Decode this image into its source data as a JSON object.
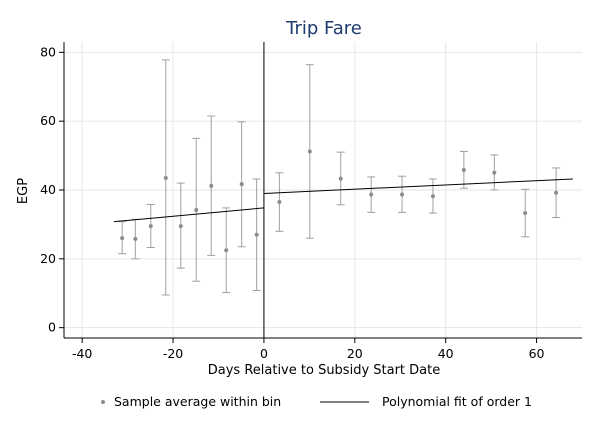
{
  "chart_data": {
    "type": "scatter",
    "title": "Trip Fare",
    "xlabel": "Days Relative to Subsidy Start Date",
    "ylabel": "EGP",
    "xlim": [
      -44,
      70
    ],
    "ylim": [
      -3,
      83
    ],
    "xticks": [
      -40,
      -20,
      0,
      20,
      40,
      60
    ],
    "yticks": [
      0,
      20,
      40,
      60,
      80
    ],
    "grid": true,
    "cutoff": 0,
    "colors": {
      "title": "#1e3a6e",
      "points": "#8c8c8c",
      "error_bars": "#a0a0a0",
      "fit_line": "#000000",
      "grid": "#e6e6e6",
      "cutoff_line": "#000000"
    },
    "series": [
      {
        "name": "Sample average within bin",
        "kind": "points_with_ci",
        "points": [
          {
            "x": -31.2,
            "y": 26.0,
            "lo": 21.5,
            "hi": 30.8
          },
          {
            "x": -28.3,
            "y": 25.8,
            "lo": 20.0,
            "hi": 31.5
          },
          {
            "x": -24.9,
            "y": 29.5,
            "lo": 23.3,
            "hi": 35.8
          },
          {
            "x": -21.6,
            "y": 43.5,
            "lo": 9.5,
            "hi": 77.8
          },
          {
            "x": -18.3,
            "y": 29.5,
            "lo": 17.3,
            "hi": 42.0
          },
          {
            "x": -14.9,
            "y": 34.2,
            "lo": 13.5,
            "hi": 55.0
          },
          {
            "x": -11.6,
            "y": 41.2,
            "lo": 21.0,
            "hi": 61.5
          },
          {
            "x": -8.3,
            "y": 22.5,
            "lo": 10.2,
            "hi": 34.8
          },
          {
            "x": -4.9,
            "y": 41.7,
            "lo": 23.5,
            "hi": 59.8
          },
          {
            "x": -1.6,
            "y": 27.0,
            "lo": 10.8,
            "hi": 43.2
          },
          {
            "x": 3.4,
            "y": 36.5,
            "lo": 28.0,
            "hi": 45.0
          },
          {
            "x": 10.1,
            "y": 51.2,
            "lo": 26.0,
            "hi": 76.4
          },
          {
            "x": 16.9,
            "y": 43.3,
            "lo": 35.7,
            "hi": 51.0
          },
          {
            "x": 23.6,
            "y": 38.7,
            "lo": 33.5,
            "hi": 43.8
          },
          {
            "x": 30.4,
            "y": 38.7,
            "lo": 33.5,
            "hi": 44.0
          },
          {
            "x": 37.2,
            "y": 38.2,
            "lo": 33.3,
            "hi": 43.2
          },
          {
            "x": 44.0,
            "y": 45.8,
            "lo": 40.5,
            "hi": 51.2
          },
          {
            "x": 50.7,
            "y": 45.0,
            "lo": 40.0,
            "hi": 50.2
          },
          {
            "x": 57.5,
            "y": 33.3,
            "lo": 26.4,
            "hi": 40.2
          },
          {
            "x": 64.3,
            "y": 39.2,
            "lo": 32.0,
            "hi": 46.4
          }
        ]
      },
      {
        "name": "Polynomial fit of order 1",
        "kind": "fit_line",
        "segments": [
          {
            "x": [
              -33,
              0
            ],
            "y": [
              30.8,
              34.8
            ]
          },
          {
            "x": [
              0,
              68
            ],
            "y": [
              39.0,
              43.2
            ]
          }
        ]
      }
    ],
    "legend": {
      "position": "bottom",
      "entries": [
        "Sample average within bin",
        "Polynomial fit of order 1"
      ]
    }
  }
}
